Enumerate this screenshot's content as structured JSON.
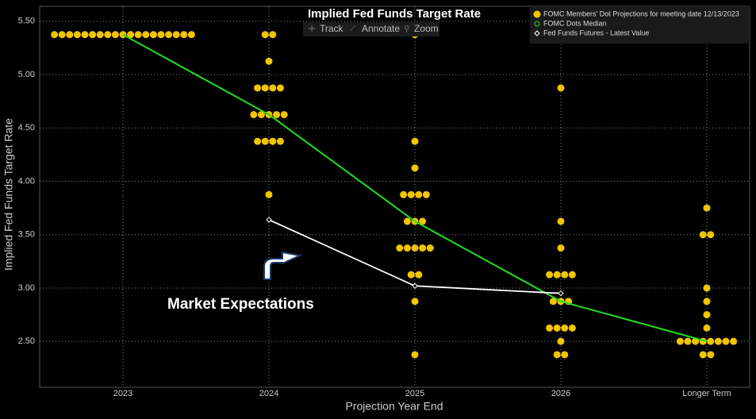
{
  "chart_data": {
    "type": "dotplot",
    "title": "Implied Fed Funds Target Rate",
    "x_label": "Projection Year End",
    "y_label": "Implied Fed Funds Target Rate",
    "toolbar": [
      "Track",
      "Annotate",
      "Zoom"
    ],
    "annotation": "Market Expectations",
    "categories": [
      "2023",
      "2024",
      "2025",
      "2026",
      "Longer Term"
    ],
    "ylim": [
      2.07,
      5.64
    ],
    "yticks": [
      {
        "value": 2.5,
        "label": "2.50"
      },
      {
        "value": 3.0,
        "label": "3.00"
      },
      {
        "value": 3.5,
        "label": "3.50"
      },
      {
        "value": 4.0,
        "label": "4.00"
      },
      {
        "value": 4.5,
        "label": "4.50"
      },
      {
        "value": 5.0,
        "label": "5.00"
      },
      {
        "value": 5.5,
        "label": "5.50"
      }
    ],
    "grid": true,
    "legend": "upper right",
    "series": [
      {
        "name": "FOMC Members' Dot Projections for meeting date 12/13/2023",
        "color": "#f2c500",
        "marker": "dots",
        "values": [
          [
            5.375,
            5.375,
            5.375,
            5.375,
            5.375,
            5.375,
            5.375,
            5.375,
            5.375,
            5.375,
            5.375,
            5.375,
            5.375,
            5.375,
            5.375,
            5.375,
            5.375,
            5.375,
            5.375
          ],
          [
            5.375,
            5.375,
            5.125,
            4.875,
            4.875,
            4.875,
            4.875,
            4.625,
            4.625,
            4.625,
            4.625,
            4.625,
            4.375,
            4.375,
            4.375,
            4.375,
            3.875
          ],
          [
            5.375,
            4.375,
            4.125,
            3.875,
            3.875,
            3.875,
            3.875,
            3.625,
            3.625,
            3.625,
            3.375,
            3.375,
            3.375,
            3.375,
            3.375,
            3.125,
            3.125,
            2.875,
            2.375
          ],
          [
            4.875,
            3.625,
            3.375,
            3.125,
            3.125,
            3.125,
            3.125,
            2.875,
            2.875,
            2.875,
            2.625,
            2.625,
            2.625,
            2.625,
            2.5,
            2.375,
            2.375
          ],
          [
            3.75,
            3.5,
            3.5,
            3.0,
            2.875,
            2.75,
            2.625,
            2.5,
            2.5,
            2.5,
            2.5,
            2.5,
            2.5,
            2.5,
            2.5,
            2.375,
            2.375
          ]
        ]
      },
      {
        "name": "FOMC Dots Median",
        "color": "#22dd22",
        "marker": "line",
        "values": [
          5.375,
          4.625,
          3.625,
          2.875,
          2.5
        ]
      },
      {
        "name": "Fed Funds Futures - Latest Value",
        "color": "#ffffff",
        "marker": "line-diamond",
        "values": [
          null,
          3.64,
          3.02,
          2.95,
          null
        ]
      }
    ]
  }
}
